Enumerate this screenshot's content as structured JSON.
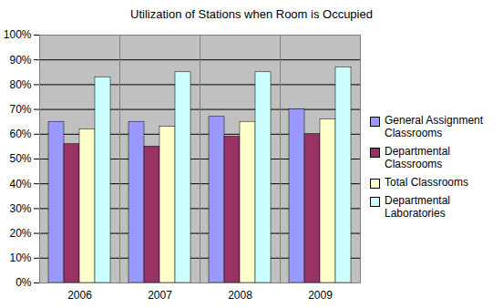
{
  "chart_data": {
    "type": "bar",
    "title": "Utilization of Stations when Room is Occupied",
    "categories": [
      "2006",
      "2007",
      "2008",
      "2009"
    ],
    "series": [
      {
        "name": "General Assignment Classrooms",
        "color": "#9999ff",
        "values": [
          65,
          65,
          67,
          70
        ]
      },
      {
        "name": "Departmental Classrooms",
        "color": "#993366",
        "values": [
          56,
          55,
          59,
          60
        ]
      },
      {
        "name": "Total Classrooms",
        "color": "#ffffcc",
        "values": [
          62,
          63,
          65,
          66
        ]
      },
      {
        "name": "Departmental Laboratories",
        "color": "#ccffff",
        "values": [
          83,
          85,
          85,
          87
        ]
      }
    ],
    "ylim": [
      0,
      100
    ],
    "yticks": [
      {
        "value": 0,
        "label": "0%"
      },
      {
        "value": 10,
        "label": "10%"
      },
      {
        "value": 20,
        "label": "20%"
      },
      {
        "value": 30,
        "label": "30%"
      },
      {
        "value": 40,
        "label": "40%"
      },
      {
        "value": 50,
        "label": "50%"
      },
      {
        "value": 60,
        "label": "60%"
      },
      {
        "value": 70,
        "label": "70%"
      },
      {
        "value": 80,
        "label": "80%"
      },
      {
        "value": 90,
        "label": "90%"
      },
      {
        "value": 100,
        "label": "100%"
      }
    ],
    "grid": true,
    "legend": "right"
  }
}
